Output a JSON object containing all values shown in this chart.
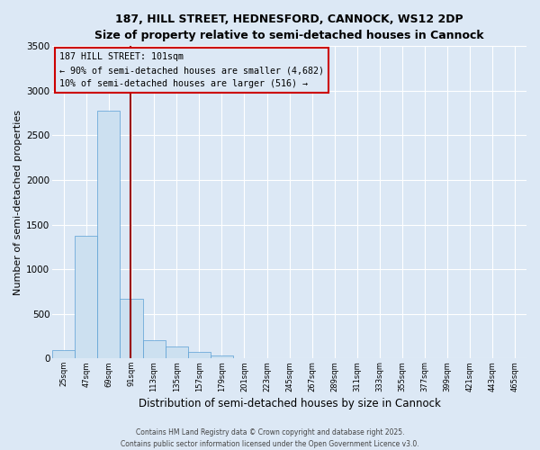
{
  "title1": "187, HILL STREET, HEDNESFORD, CANNOCK, WS12 2DP",
  "title2": "Size of property relative to semi-detached houses in Cannock",
  "xlabel": "Distribution of semi-detached houses by size in Cannock",
  "ylabel": "Number of semi-detached properties",
  "footnote1": "Contains HM Land Registry data © Crown copyright and database right 2025.",
  "footnote2": "Contains public sector information licensed under the Open Government Licence v3.0.",
  "property_size": 101,
  "annotation_label": "187 HILL STREET: 101sqm",
  "annotation_smaller": "← 90% of semi-detached houses are smaller (4,682)",
  "annotation_larger": "10% of semi-detached houses are larger (516) →",
  "bar_color": "#cce0f0",
  "bar_edge_color": "#5a9fd4",
  "marker_color": "#990000",
  "annotation_box_edge": "#cc0000",
  "bins": [
    25,
    47,
    69,
    91,
    113,
    135,
    157,
    179,
    201,
    223,
    245,
    267,
    289,
    311,
    333,
    355,
    377,
    399,
    421,
    443,
    465
  ],
  "values": [
    90,
    1370,
    2780,
    670,
    200,
    130,
    70,
    30,
    0,
    0,
    0,
    0,
    0,
    0,
    0,
    0,
    0,
    0,
    0,
    0
  ],
  "ylim": [
    0,
    3500
  ],
  "yticks": [
    0,
    500,
    1000,
    1500,
    2000,
    2500,
    3000,
    3500
  ],
  "background_color": "#dce8f5"
}
